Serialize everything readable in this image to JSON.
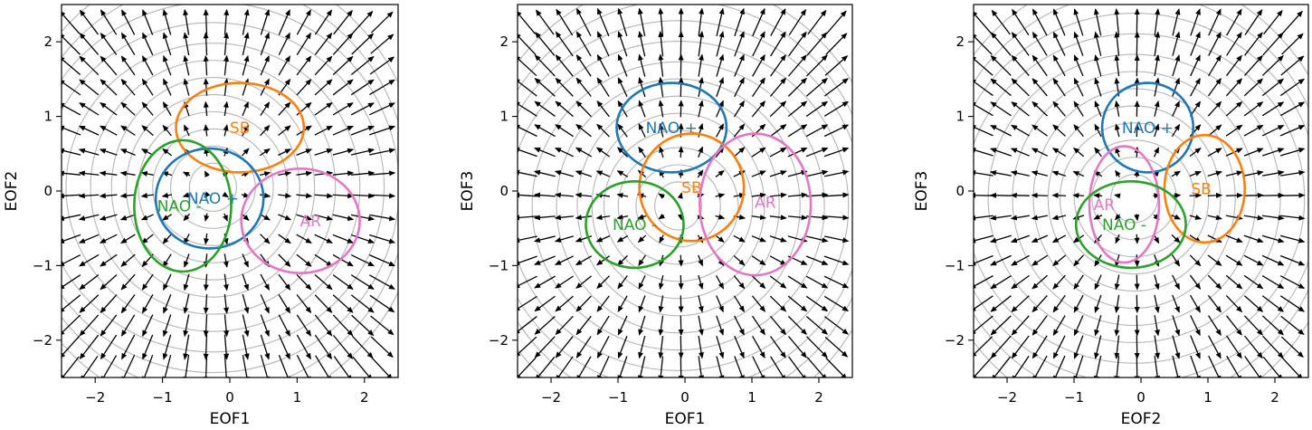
{
  "chart_data": [
    {
      "type": "scatter",
      "xlabel": "EOF1",
      "ylabel": "EOF2",
      "xlim": [
        -2.5,
        2.5
      ],
      "ylim": [
        -2.5,
        2.5
      ],
      "xticks": [
        -2,
        -1,
        0,
        1,
        2
      ],
      "yticks": [
        -2,
        -1,
        0,
        1,
        2
      ],
      "flow_center": [
        -0.25,
        0.05
      ],
      "ellipses": [
        {
          "label": "SB",
          "color": "#ff7f0e",
          "center": [
            0.15,
            0.85
          ],
          "rx": 0.95,
          "ry": 0.6,
          "label_at": [
            0.15,
            0.85
          ]
        },
        {
          "label": "NAO +",
          "color": "#1f77b4",
          "center": [
            -0.3,
            -0.1
          ],
          "rx": 0.8,
          "ry": 0.67,
          "label_at": [
            -0.25,
            -0.1
          ]
        },
        {
          "label": "NAO -",
          "color": "#2ca02c",
          "center": [
            -0.7,
            -0.2
          ],
          "rx": 0.72,
          "ry": 0.88,
          "label_at": [
            -0.75,
            -0.2
          ]
        },
        {
          "label": "AR",
          "color": "#e377c2",
          "center": [
            1.05,
            -0.4
          ],
          "rx": 0.88,
          "ry": 0.7,
          "label_at": [
            1.2,
            -0.4
          ]
        }
      ]
    },
    {
      "type": "scatter",
      "xlabel": "EOF1",
      "ylabel": "EOF3",
      "xlim": [
        -2.5,
        2.5
      ],
      "ylim": [
        -2.5,
        2.5
      ],
      "xticks": [
        -2,
        -1,
        0,
        1,
        2
      ],
      "yticks": [
        -2,
        -1,
        0,
        1,
        2
      ],
      "flow_center": [
        -0.1,
        -0.2
      ],
      "ellipses": [
        {
          "label": "NAO +",
          "color": "#1f77b4",
          "center": [
            -0.2,
            0.85
          ],
          "rx": 0.82,
          "ry": 0.6,
          "label_at": [
            -0.2,
            0.85
          ]
        },
        {
          "label": "SB",
          "color": "#ff7f0e",
          "center": [
            0.1,
            0.05
          ],
          "rx": 0.78,
          "ry": 0.72,
          "label_at": [
            0.1,
            0.05
          ]
        },
        {
          "label": "AR",
          "color": "#e377c2",
          "center": [
            1.05,
            -0.18
          ],
          "rx": 0.83,
          "ry": 0.95,
          "label_at": [
            1.2,
            -0.15
          ]
        },
        {
          "label": "NAO -",
          "color": "#2ca02c",
          "center": [
            -0.75,
            -0.45
          ],
          "rx": 0.73,
          "ry": 0.58,
          "label_at": [
            -0.75,
            -0.45
          ]
        }
      ]
    },
    {
      "type": "scatter",
      "xlabel": "EOF2",
      "ylabel": "EOF3",
      "xlim": [
        -2.5,
        2.5
      ],
      "ylim": [
        -2.5,
        2.5
      ],
      "xticks": [
        -2,
        -1,
        0,
        1,
        2
      ],
      "yticks": [
        -2,
        -1,
        0,
        1,
        2
      ],
      "flow_center": [
        -0.1,
        -0.1
      ],
      "ellipses": [
        {
          "label": "NAO +",
          "color": "#1f77b4",
          "center": [
            0.1,
            0.85
          ],
          "rx": 0.68,
          "ry": 0.6,
          "label_at": [
            0.1,
            0.85
          ]
        },
        {
          "label": "AR",
          "color": "#e377c2",
          "center": [
            -0.25,
            -0.18
          ],
          "rx": 0.52,
          "ry": 0.78,
          "label_at": [
            -0.55,
            -0.18
          ]
        },
        {
          "label": "SB",
          "color": "#ff7f0e",
          "center": [
            0.95,
            0.03
          ],
          "rx": 0.6,
          "ry": 0.72,
          "label_at": [
            0.9,
            0.03
          ]
        },
        {
          "label": "NAO -",
          "color": "#2ca02c",
          "center": [
            -0.15,
            -0.45
          ],
          "rx": 0.82,
          "ry": 0.58,
          "label_at": [
            -0.25,
            -0.45
          ]
        }
      ]
    }
  ]
}
